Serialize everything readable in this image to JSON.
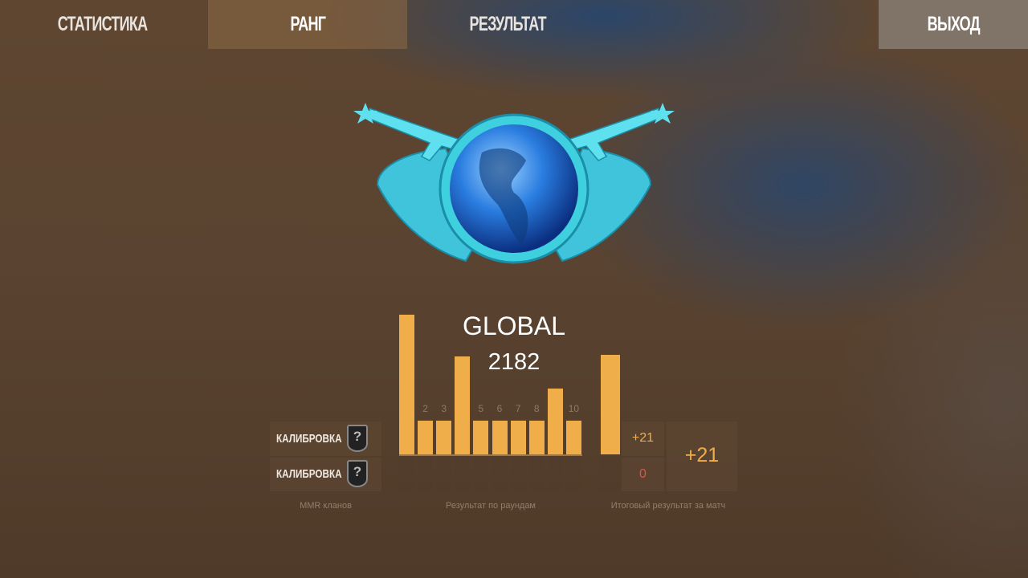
{
  "nav": {
    "tabs": [
      {
        "label": "СТАТИСТИКА",
        "active": false
      },
      {
        "label": "РАНГ",
        "active": true
      },
      {
        "label": "РЕЗУЛЬТАТ",
        "active": false
      }
    ],
    "exit_label": "ВЫХОД"
  },
  "rank": {
    "emblem": "globe-winged-rifles-emblem",
    "name": "GLOBAL",
    "value": "2182"
  },
  "clan_mmr": {
    "rows": [
      {
        "label": "КАЛИБРОВКА",
        "badge": "?"
      },
      {
        "label": "КАЛИБРОВКА",
        "badge": "?"
      }
    ],
    "caption": "MMR кланов"
  },
  "rounds": {
    "caption": "Результат по раундам",
    "labels": [
      "",
      "2",
      "3",
      "",
      "5",
      "6",
      "7",
      "8",
      "",
      "10"
    ],
    "bar_levels": [
      1.0,
      0.24,
      0.24,
      0.7,
      0.24,
      0.24,
      0.24,
      0.24,
      0.47,
      0.24
    ]
  },
  "match": {
    "bar_level": 0.71,
    "top_value": "+21",
    "bottom_value": "0",
    "total": "+21",
    "caption": "Итоговый результат за матч"
  },
  "colors": {
    "bar": "#f0ae4a",
    "positive": "#f0ae4a",
    "zero": "#d9544a",
    "emblem": "#3fd0e0"
  }
}
